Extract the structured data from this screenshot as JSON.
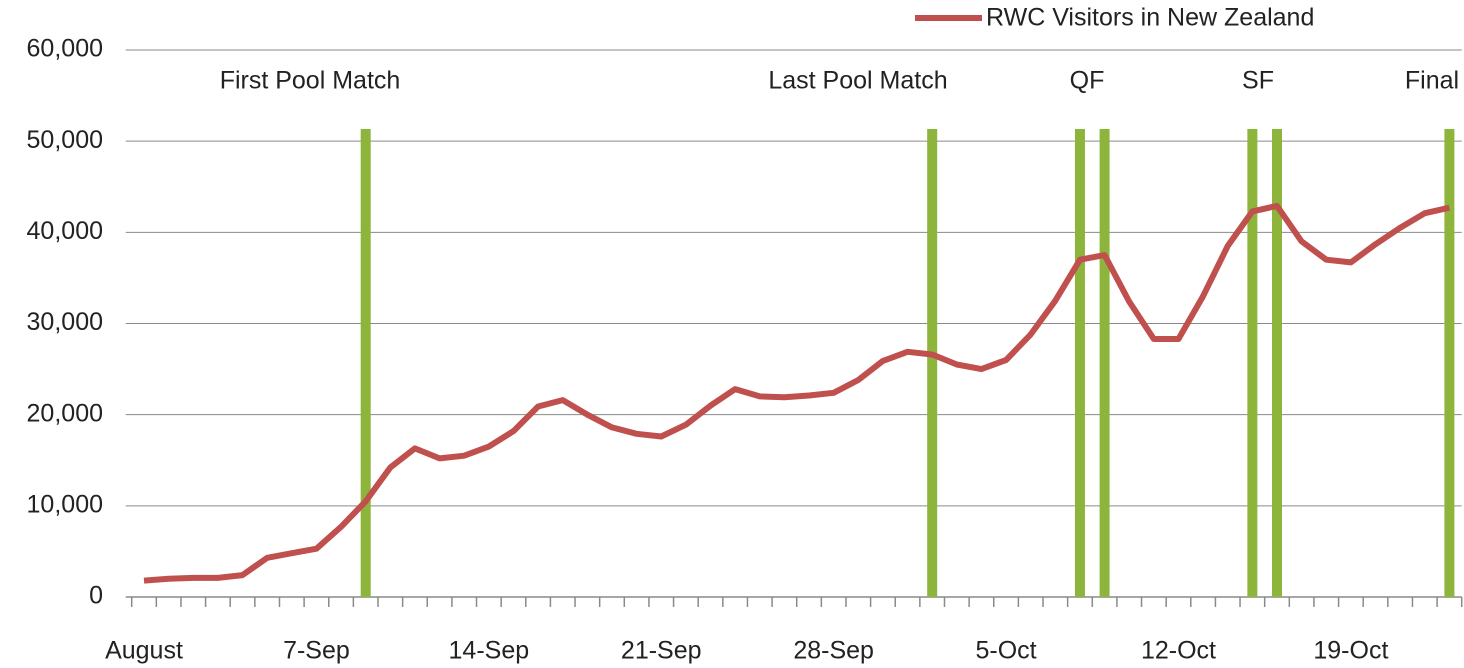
{
  "chart_data": {
    "type": "line",
    "categories": [
      "August",
      null,
      null,
      null,
      null,
      null,
      null,
      "7-Sep",
      null,
      null,
      null,
      null,
      null,
      null,
      "14-Sep",
      null,
      null,
      null,
      null,
      null,
      null,
      "21-Sep",
      null,
      null,
      null,
      null,
      null,
      null,
      "28-Sep",
      null,
      null,
      null,
      null,
      null,
      null,
      "5-Oct",
      null,
      null,
      null,
      null,
      null,
      null,
      "12-Oct",
      null,
      null,
      null,
      null,
      null,
      null,
      "19-Oct",
      null,
      null,
      null,
      null
    ],
    "series": [
      {
        "name": "RWC Visitors in New Zealand",
        "color": "#c0504d",
        "values": [
          1800,
          2000,
          2100,
          2100,
          2400,
          4300,
          4800,
          5300,
          7700,
          10500,
          14200,
          16300,
          15200,
          15500,
          16500,
          18200,
          20900,
          21600,
          20000,
          18600,
          17900,
          17600,
          18900,
          21000,
          22800,
          22000,
          21900,
          22100,
          22400,
          23800,
          25900,
          26900,
          26600,
          25500,
          25000,
          26000,
          28800,
          32500,
          37000,
          37500,
          32400,
          28300,
          28300,
          33000,
          38500,
          42300,
          42900,
          39000,
          37000,
          36700,
          38700,
          40500,
          42100,
          42700
        ]
      }
    ],
    "ylim": [
      0,
      60000
    ],
    "yticks": [
      0,
      {
        "value": 10000,
        "label": "10,000"
      },
      {
        "value": 20000,
        "label": "20,000"
      },
      {
        "value": 30000,
        "label": "30,000"
      },
      {
        "value": 40000,
        "label": "40,000"
      },
      {
        "value": 50000,
        "label": "50,000"
      },
      {
        "value": 60000,
        "label": "60,000"
      }
    ],
    "grid": true,
    "legend": "top-right",
    "event_days": [
      9,
      32,
      38,
      39,
      45,
      46,
      53
    ],
    "event_color": "#8db53c",
    "annotations": [
      "First Pool Match",
      "Last Pool Match",
      "QF",
      "SF",
      "Final"
    ]
  }
}
